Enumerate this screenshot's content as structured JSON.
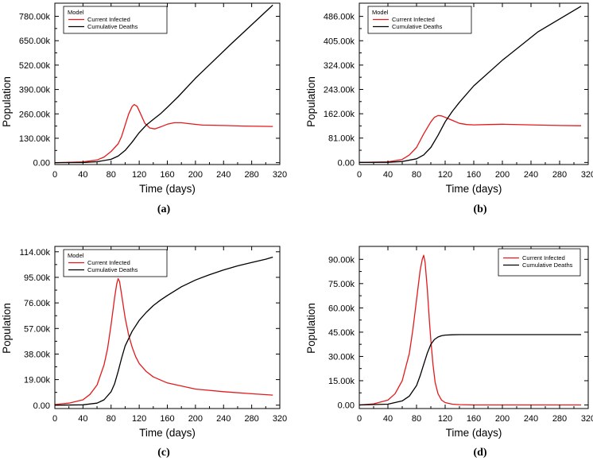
{
  "chart_data": [
    {
      "type": "line",
      "panel_label": "(a)",
      "xlabel": "Time (days)",
      "ylabel": "Population",
      "xlim": [
        0,
        320
      ],
      "ylim": [
        -10000,
        850000
      ],
      "xticks": [
        "0",
        "40",
        "80",
        "120",
        "160",
        "200",
        "240",
        "280",
        "320"
      ],
      "yticks": [
        0,
        130000,
        260000,
        390000,
        520000,
        650000,
        780000
      ],
      "ytick_labels": [
        "0.00",
        "130.00k",
        "260.00k",
        "390.00k",
        "520.00k",
        "650.00k",
        "780.00k"
      ],
      "legend": {
        "title": "Model",
        "position": "top-left"
      },
      "series": [
        {
          "name": "Current Infected",
          "color": "#e31a1c",
          "x": [
            0,
            40,
            60,
            70,
            80,
            90,
            95,
            100,
            105,
            110,
            113,
            117,
            122,
            128,
            135,
            142,
            150,
            160,
            170,
            180,
            190,
            210,
            240,
            270,
            310
          ],
          "y": [
            0,
            4000,
            14000,
            30000,
            60000,
            100000,
            140000,
            200000,
            260000,
            300000,
            310000,
            300000,
            260000,
            210000,
            185000,
            180000,
            190000,
            205000,
            213000,
            213000,
            208000,
            200000,
            198000,
            195000,
            193000
          ]
        },
        {
          "name": "Cumulative Deaths",
          "color": "#000000",
          "x": [
            0,
            40,
            60,
            80,
            90,
            100,
            110,
            120,
            130,
            140,
            150,
            160,
            175,
            200,
            250,
            310
          ],
          "y": [
            0,
            800,
            5000,
            18000,
            35000,
            65000,
            110000,
            160000,
            200000,
            230000,
            260000,
            295000,
            350000,
            450000,
            630000,
            840000
          ]
        }
      ]
    },
    {
      "type": "line",
      "panel_label": "(b)",
      "xlabel": "Time (days)",
      "ylabel": "Population",
      "xlim": [
        0,
        320
      ],
      "ylim": [
        -7000,
        530000
      ],
      "xticks": [
        "0",
        "40",
        "80",
        "120",
        "160",
        "200",
        "240",
        "280",
        "320"
      ],
      "yticks": [
        0,
        81000,
        162000,
        243000,
        324000,
        405000,
        486000
      ],
      "ytick_labels": [
        "0.00",
        "81.00k",
        "162.00k",
        "243.00k",
        "324.00k",
        "405.00k",
        "486.00k"
      ],
      "legend": {
        "title": "Model",
        "position": "top-left"
      },
      "series": [
        {
          "name": "Current Infected",
          "color": "#e31a1c",
          "x": [
            0,
            40,
            60,
            70,
            80,
            90,
            100,
            105,
            110,
            115,
            120,
            130,
            140,
            150,
            160,
            180,
            200,
            240,
            280,
            310
          ],
          "y": [
            0,
            2000,
            10000,
            25000,
            50000,
            95000,
            135000,
            150000,
            156000,
            155000,
            150000,
            140000,
            130000,
            126000,
            125000,
            126000,
            127000,
            125000,
            123000,
            122000
          ]
        },
        {
          "name": "Cumulative Deaths",
          "color": "#000000",
          "x": [
            0,
            40,
            60,
            80,
            90,
            100,
            110,
            120,
            130,
            140,
            160,
            200,
            250,
            310
          ],
          "y": [
            0,
            500,
            3000,
            12000,
            25000,
            50000,
            90000,
            135000,
            170000,
            200000,
            255000,
            340000,
            435000,
            520000
          ]
        }
      ]
    },
    {
      "type": "line",
      "panel_label": "(c)",
      "xlabel": "Time (days)",
      "ylabel": "Population",
      "xlim": [
        0,
        320
      ],
      "ylim": [
        -2500,
        118000
      ],
      "xticks": [
        "0",
        "40",
        "80",
        "120",
        "160",
        "200",
        "240",
        "280",
        "320"
      ],
      "yticks": [
        0,
        19000,
        38000,
        57000,
        76000,
        95000,
        114000
      ],
      "ytick_labels": [
        "0.00",
        "19.00k",
        "38.00k",
        "57.00k",
        "76.00k",
        "95.00k",
        "114.00k"
      ],
      "legend": {
        "title": "Model",
        "position": "top-left"
      },
      "series": [
        {
          "name": "Current Infected",
          "color": "#e31a1c",
          "x": [
            0,
            20,
            40,
            50,
            60,
            70,
            75,
            80,
            85,
            88,
            90,
            92,
            95,
            100,
            105,
            110,
            115,
            120,
            130,
            140,
            160,
            200,
            240,
            280,
            310
          ],
          "y": [
            500,
            1500,
            4000,
            8000,
            15000,
            30000,
            42000,
            60000,
            80000,
            90000,
            94000,
            92000,
            82000,
            65000,
            52000,
            43000,
            36000,
            31000,
            25000,
            21000,
            16500,
            12000,
            10000,
            8500,
            7500
          ]
        },
        {
          "name": "Cumulative Deaths",
          "color": "#000000",
          "x": [
            0,
            40,
            60,
            70,
            80,
            85,
            90,
            95,
            100,
            110,
            120,
            130,
            140,
            150,
            160,
            180,
            200,
            220,
            240,
            260,
            280,
            300,
            310
          ],
          "y": [
            0,
            300,
            1500,
            4000,
            10000,
            16000,
            25000,
            35000,
            44000,
            55000,
            63000,
            69000,
            74000,
            78000,
            81500,
            88000,
            93000,
            97000,
            100500,
            103500,
            106000,
            108500,
            110000
          ]
        }
      ]
    },
    {
      "type": "line",
      "panel_label": "(d)",
      "xlabel": "Time (days)",
      "ylabel": "Population",
      "xlim": [
        0,
        320
      ],
      "ylim": [
        -2200,
        98000
      ],
      "xticks": [
        "0",
        "40",
        "80",
        "120",
        "160",
        "200",
        "240",
        "280",
        "320"
      ],
      "yticks": [
        0,
        15000,
        30000,
        45000,
        60000,
        75000,
        90000
      ],
      "ytick_labels": [
        "0.00",
        "15.00k",
        "30.00k",
        "45.00k",
        "60.00k",
        "75.00k",
        "90.00k"
      ],
      "legend": {
        "title": "",
        "position": "top-right"
      },
      "series": [
        {
          "name": "Current Infected",
          "color": "#e31a1c",
          "x": [
            0,
            20,
            40,
            50,
            60,
            70,
            75,
            80,
            85,
            88,
            90,
            92,
            95,
            98,
            100,
            103,
            106,
            110,
            115,
            120,
            130,
            140,
            160,
            200,
            310
          ],
          "y": [
            0,
            700,
            3000,
            7000,
            15000,
            32000,
            47000,
            65000,
            83000,
            90000,
            92500,
            88000,
            72000,
            52000,
            40000,
            25000,
            14000,
            7000,
            3000,
            1500,
            500,
            200,
            0,
            0,
            0
          ]
        },
        {
          "name": "Cumulative Deaths",
          "color": "#000000",
          "x": [
            0,
            40,
            60,
            70,
            80,
            85,
            90,
            95,
            100,
            105,
            110,
            115,
            120,
            130,
            140,
            160,
            200,
            310
          ],
          "y": [
            0,
            500,
            2500,
            5500,
            12000,
            18000,
            25000,
            32000,
            37500,
            40500,
            42000,
            42800,
            43200,
            43400,
            43500,
            43500,
            43500,
            43500
          ]
        }
      ]
    }
  ]
}
